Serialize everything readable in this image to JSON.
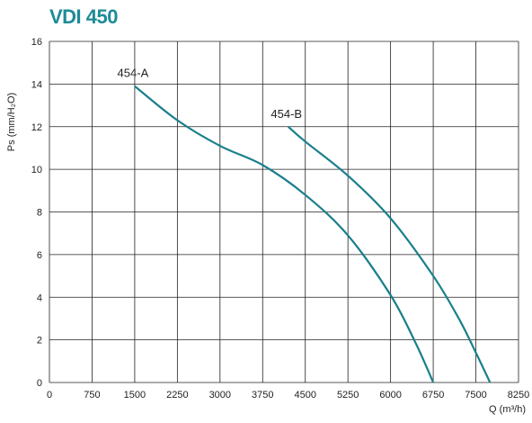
{
  "chart_data": {
    "type": "line",
    "title": "VDI 450",
    "xlabel": "Q (m³/h)",
    "ylabel": "Ps (mm/H₂O)",
    "xlim": [
      0,
      8250
    ],
    "ylim": [
      0,
      16
    ],
    "x_ticks": [
      0,
      750,
      1500,
      2250,
      3000,
      3750,
      4500,
      5250,
      6000,
      6750,
      7500,
      8250
    ],
    "y_ticks": [
      0,
      2,
      4,
      6,
      8,
      10,
      12,
      14,
      16
    ],
    "grid": true,
    "line_color": "#1a7f8c",
    "series": [
      {
        "name": "454-A",
        "points": [
          [
            1500,
            13.9
          ],
          [
            2250,
            12.3
          ],
          [
            3000,
            11.1
          ],
          [
            3750,
            10.2
          ],
          [
            4500,
            8.8
          ],
          [
            5250,
            6.9
          ],
          [
            6000,
            4.1
          ],
          [
            6450,
            1.8
          ],
          [
            6750,
            0
          ]
        ]
      },
      {
        "name": "454-B",
        "points": [
          [
            4200,
            12.0
          ],
          [
            4500,
            11.3
          ],
          [
            5250,
            9.7
          ],
          [
            6000,
            7.7
          ],
          [
            6750,
            5.0
          ],
          [
            7200,
            3.0
          ],
          [
            7500,
            1.4
          ],
          [
            7750,
            0
          ]
        ]
      }
    ]
  }
}
